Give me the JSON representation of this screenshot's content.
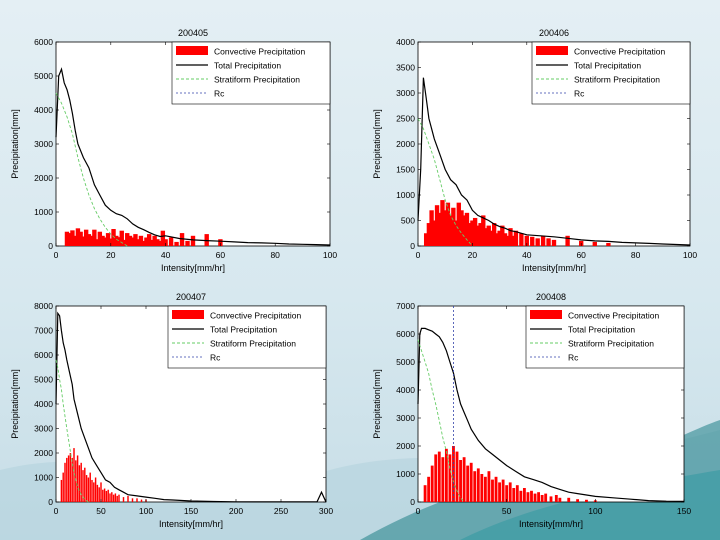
{
  "colors": {
    "convective": "#ff0000",
    "total": "#000000",
    "stratiform": "#66cc66",
    "rc": "#3344aa",
    "plot_bg": "#ffffff"
  },
  "chart_data": [
    {
      "type": "bar",
      "title": "200405",
      "xlabel": "Intensity[mm/hr]",
      "ylabel": "Precipitation[mm]",
      "xlim": [
        0,
        100
      ],
      "ylim": [
        0,
        6000
      ],
      "xticks": [
        0,
        20,
        40,
        60,
        80,
        100
      ],
      "yticks": [
        0,
        1000,
        2000,
        3000,
        4000,
        5000,
        6000
      ],
      "legend": [
        "Convective Precipitation",
        "Total Precipitation",
        "Stratiform Precipitation",
        "Rc"
      ],
      "legend_position": "top-right",
      "rc": null,
      "series": [
        {
          "name": "Convective Precipitation",
          "kind": "bar",
          "x": [
            4,
            5,
            6,
            7,
            8,
            9,
            10,
            11,
            12,
            13,
            14,
            15,
            16,
            17,
            18,
            19,
            20,
            21,
            22,
            23,
            24,
            25,
            26,
            27,
            28,
            29,
            30,
            31,
            32,
            33,
            34,
            35,
            36,
            37,
            38,
            39,
            40,
            42,
            44,
            46,
            48,
            50,
            55,
            60
          ],
          "values": [
            420,
            380,
            460,
            300,
            520,
            420,
            280,
            480,
            350,
            300,
            480,
            200,
            420,
            300,
            250,
            380,
            220,
            500,
            300,
            260,
            450,
            180,
            380,
            300,
            250,
            350,
            200,
            300,
            150,
            250,
            350,
            180,
            300,
            200,
            150,
            450,
            200,
            250,
            120,
            380,
            150,
            300,
            350,
            200
          ]
        },
        {
          "name": "Total Precipitation",
          "kind": "line",
          "x": [
            0,
            1,
            2,
            3,
            4,
            5,
            6,
            7,
            8,
            10,
            12,
            14,
            16,
            18,
            20,
            22,
            24,
            26,
            28,
            30,
            32,
            34,
            36,
            38,
            40,
            45,
            50,
            55,
            60,
            65,
            70,
            75,
            80,
            85,
            90,
            95,
            100
          ],
          "values": [
            3200,
            5000,
            5200,
            4800,
            4600,
            4300,
            3900,
            3400,
            3000,
            2600,
            2300,
            1800,
            1500,
            1200,
            1050,
            950,
            900,
            800,
            650,
            550,
            480,
            400,
            330,
            280,
            300,
            220,
            180,
            160,
            140,
            120,
            100,
            90,
            80,
            60,
            50,
            40,
            30
          ]
        },
        {
          "name": "Stratiform Precipitation",
          "kind": "line",
          "x": [
            0,
            2,
            4,
            6,
            8,
            10,
            12,
            14,
            16,
            18,
            20,
            22,
            24,
            26
          ],
          "values": [
            4500,
            4200,
            3800,
            3300,
            2600,
            2000,
            1500,
            1100,
            800,
            550,
            350,
            200,
            100,
            0
          ]
        }
      ]
    },
    {
      "type": "bar",
      "title": "200406",
      "xlabel": "Intensity[mm/hr]",
      "ylabel": "Precipitation[mm]",
      "xlim": [
        0,
        100
      ],
      "ylim": [
        0,
        4000
      ],
      "xticks": [
        0,
        20,
        40,
        60,
        80,
        100
      ],
      "yticks": [
        0,
        500,
        1000,
        1500,
        2000,
        2500,
        3000,
        3500,
        4000
      ],
      "legend": [
        "Convective Precipitation",
        "Total Precipitation",
        "Stratiform Precipitation",
        "Rc"
      ],
      "legend_position": "top-right",
      "rc": null,
      "series": [
        {
          "name": "Convective Precipitation",
          "kind": "bar",
          "x": [
            3,
            4,
            5,
            6,
            7,
            8,
            9,
            10,
            11,
            12,
            13,
            14,
            15,
            16,
            17,
            18,
            19,
            20,
            21,
            22,
            23,
            24,
            25,
            26,
            27,
            28,
            29,
            30,
            31,
            32,
            33,
            34,
            35,
            36,
            38,
            40,
            42,
            44,
            46,
            48,
            50,
            55,
            60,
            65,
            70
          ],
          "values": [
            250,
            450,
            700,
            500,
            800,
            650,
            900,
            700,
            850,
            600,
            750,
            500,
            850,
            700,
            600,
            650,
            450,
            500,
            550,
            400,
            450,
            600,
            350,
            400,
            300,
            450,
            250,
            300,
            400,
            250,
            200,
            350,
            200,
            300,
            250,
            200,
            180,
            150,
            200,
            150,
            120,
            200,
            100,
            80,
            60
          ]
        },
        {
          "name": "Total Precipitation",
          "kind": "line",
          "x": [
            0,
            1,
            2,
            3,
            4,
            5,
            6,
            8,
            10,
            12,
            14,
            16,
            18,
            20,
            22,
            24,
            26,
            28,
            30,
            32,
            34,
            36,
            38,
            40,
            45,
            50,
            55,
            60,
            65,
            70,
            75,
            80,
            85,
            90,
            95,
            100
          ],
          "values": [
            500,
            1500,
            3300,
            2900,
            2500,
            2300,
            2100,
            1800,
            1500,
            1300,
            1200,
            1000,
            900,
            700,
            600,
            550,
            500,
            430,
            380,
            350,
            300,
            280,
            250,
            220,
            200,
            180,
            150,
            120,
            100,
            90,
            70,
            60,
            50,
            40,
            30,
            20
          ]
        },
        {
          "name": "Stratiform Precipitation",
          "kind": "line",
          "x": [
            0,
            2,
            4,
            6,
            8,
            10,
            12,
            14,
            16,
            18,
            20
          ],
          "values": [
            2500,
            2300,
            2000,
            1700,
            1300,
            900,
            600,
            400,
            250,
            120,
            0
          ]
        }
      ]
    },
    {
      "type": "bar",
      "title": "200407",
      "xlabel": "Intensity[mm/hr]",
      "ylabel": "Precipitation[mm]",
      "xlim": [
        0,
        300
      ],
      "ylim": [
        0,
        8000
      ],
      "xticks": [
        0,
        50,
        100,
        150,
        200,
        250,
        300
      ],
      "yticks": [
        0,
        1000,
        2000,
        3000,
        4000,
        5000,
        6000,
        7000,
        8000
      ],
      "legend": [
        "Convective Precipitation",
        "Total Precipitation",
        "Stratiform Precipitation",
        "Rc"
      ],
      "legend_position": "top-right",
      "rc": null,
      "series": [
        {
          "name": "Convective Precipitation",
          "kind": "bar",
          "x": [
            6,
            8,
            10,
            12,
            14,
            16,
            18,
            20,
            22,
            24,
            26,
            28,
            30,
            32,
            34,
            36,
            38,
            40,
            42,
            44,
            46,
            48,
            50,
            52,
            54,
            56,
            58,
            60,
            62,
            64,
            66,
            68,
            70,
            75,
            80,
            85,
            90,
            95,
            100
          ],
          "values": [
            900,
            1200,
            1600,
            1800,
            1900,
            2000,
            1800,
            2200,
            1700,
            1900,
            1500,
            1600,
            1300,
            1400,
            1100,
            1000,
            1200,
            900,
            800,
            1000,
            700,
            600,
            800,
            500,
            550,
            450,
            500,
            350,
            400,
            300,
            350,
            250,
            300,
            200,
            250,
            150,
            150,
            100,
            100
          ]
        },
        {
          "name": "Total Precipitation",
          "kind": "line",
          "x": [
            0,
            2,
            4,
            6,
            8,
            10,
            12,
            15,
            18,
            20,
            24,
            28,
            32,
            36,
            40,
            45,
            50,
            55,
            60,
            65,
            70,
            75,
            80,
            90,
            100,
            110,
            120,
            130,
            140,
            150,
            175,
            200,
            250,
            290,
            295,
            300
          ],
          "values": [
            4000,
            7700,
            7600,
            7000,
            6500,
            6200,
            5800,
            5300,
            4800,
            4200,
            3600,
            3000,
            2600,
            2200,
            1800,
            1500,
            1200,
            900,
            800,
            600,
            500,
            400,
            300,
            250,
            200,
            150,
            100,
            80,
            60,
            40,
            20,
            10,
            5,
            5,
            400,
            0
          ]
        },
        {
          "name": "Stratiform Precipitation",
          "kind": "line",
          "x": [
            0,
            2,
            4,
            6,
            8,
            10,
            12,
            15,
            18,
            20,
            24,
            28,
            32,
            36
          ],
          "values": [
            5800,
            5500,
            5000,
            4600,
            4000,
            3500,
            3000,
            2300,
            1600,
            1200,
            600,
            300,
            100,
            0
          ]
        }
      ]
    },
    {
      "type": "bar",
      "title": "200408",
      "xlabel": "Intensity[mm/hr]",
      "ylabel": "Precipitation[mm]",
      "xlim": [
        0,
        150
      ],
      "ylim": [
        0,
        7000
      ],
      "xticks": [
        0,
        50,
        100,
        150
      ],
      "yticks": [
        0,
        1000,
        2000,
        3000,
        4000,
        5000,
        6000,
        7000
      ],
      "legend": [
        "Convective Precipitation",
        "Total Precipitation",
        "Stratiform Precipitation",
        "Rc"
      ],
      "legend_position": "top-right",
      "rc": 20,
      "series": [
        {
          "name": "Convective Precipitation",
          "kind": "bar",
          "x": [
            4,
            6,
            8,
            10,
            12,
            14,
            16,
            18,
            20,
            22,
            24,
            26,
            28,
            30,
            32,
            34,
            36,
            38,
            40,
            42,
            44,
            46,
            48,
            50,
            52,
            54,
            56,
            58,
            60,
            62,
            64,
            66,
            68,
            70,
            72,
            75,
            78,
            80,
            85,
            90,
            95,
            100
          ],
          "values": [
            600,
            900,
            1300,
            1700,
            1800,
            1600,
            1900,
            1700,
            2000,
            1800,
            1500,
            1600,
            1300,
            1400,
            1100,
            1200,
            1000,
            900,
            1100,
            800,
            900,
            700,
            800,
            600,
            700,
            500,
            600,
            400,
            500,
            350,
            400,
            300,
            350,
            250,
            300,
            200,
            250,
            150,
            150,
            100,
            80,
            60
          ]
        },
        {
          "name": "Total Precipitation",
          "kind": "line",
          "x": [
            0,
            1,
            2,
            4,
            6,
            8,
            10,
            12,
            14,
            16,
            18,
            20,
            22,
            24,
            26,
            28,
            30,
            34,
            38,
            42,
            46,
            50,
            55,
            60,
            65,
            70,
            75,
            80,
            85,
            90,
            95,
            100,
            110,
            120,
            130,
            140,
            150
          ],
          "values": [
            3500,
            6000,
            6200,
            6200,
            6150,
            6100,
            6000,
            5900,
            5700,
            5400,
            5000,
            4600,
            4000,
            3500,
            3200,
            2900,
            2600,
            2200,
            1900,
            1700,
            1500,
            1300,
            1100,
            900,
            800,
            700,
            550,
            450,
            350,
            300,
            250,
            200,
            150,
            100,
            50,
            30,
            20
          ]
        },
        {
          "name": "Stratiform Precipitation",
          "kind": "line",
          "x": [
            0,
            2,
            4,
            6,
            8,
            10,
            12,
            14,
            16,
            18,
            20,
            22,
            24,
            26
          ],
          "values": [
            5800,
            5400,
            5000,
            4600,
            4000,
            3500,
            2900,
            2300,
            1800,
            1200,
            700,
            400,
            150,
            0
          ]
        }
      ]
    }
  ]
}
